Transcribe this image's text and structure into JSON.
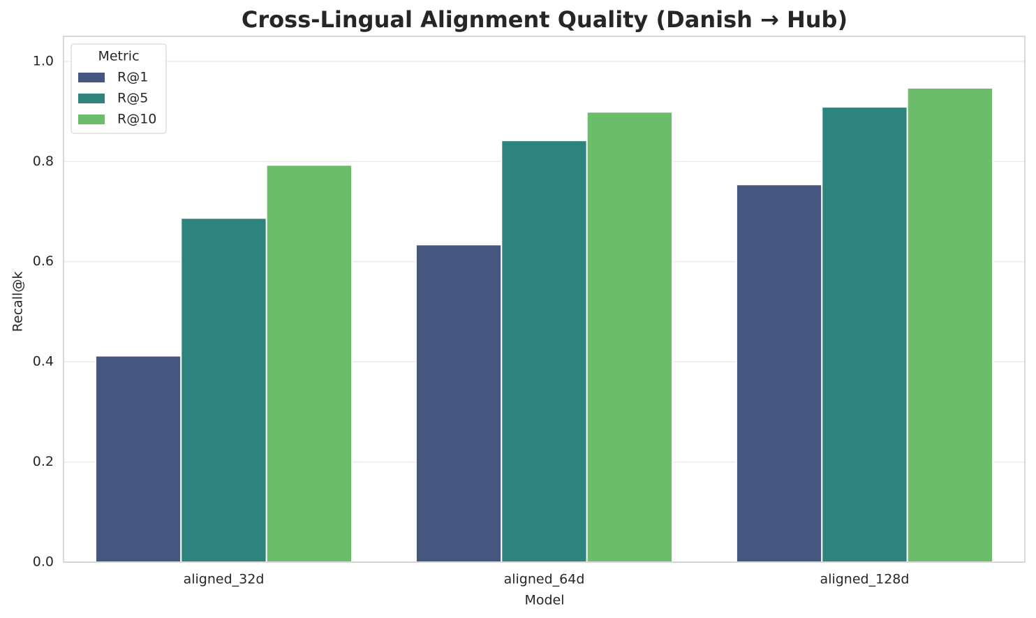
{
  "chart_data": {
    "type": "bar",
    "title": "Cross-Lingual Alignment Quality (Danish → Hub)",
    "x_label": "Model",
    "y_label": "Recall@k",
    "categories": [
      "aligned_32d",
      "aligned_64d",
      "aligned_128d"
    ],
    "legend_title": "Metric",
    "legend_position": "upper left",
    "grid": true,
    "series": [
      {
        "name": "R@1",
        "color": "#46577f",
        "values": [
          0.412,
          0.634,
          0.754
        ]
      },
      {
        "name": "R@5",
        "color": "#2e837d",
        "values": [
          0.687,
          0.842,
          0.909
        ]
      },
      {
        "name": "R@10",
        "color": "#6bbd6c",
        "values": [
          0.793,
          0.899,
          0.947
        ]
      }
    ],
    "ylim": [
      0,
      1.05
    ],
    "yticks": [
      {
        "value": 0,
        "label": "0.0"
      },
      0.2,
      0.4,
      0.6,
      0.8,
      {
        "value": 1,
        "label": "1.0"
      }
    ]
  }
}
